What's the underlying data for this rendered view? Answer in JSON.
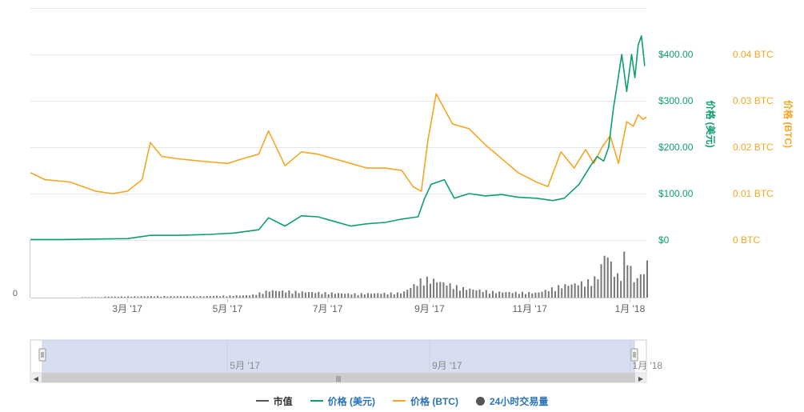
{
  "chart_data": {
    "type": "line",
    "x_axis": {
      "tick_labels": [
        "3月 '17",
        "5月 '17",
        "7月 '17",
        "9月 '17",
        "11月 '17",
        "1月 '18"
      ],
      "range": [
        "2017-01-01",
        "2018-01-11"
      ]
    },
    "y_axis_left": {
      "label": "价格 (美元)",
      "tick_labels": [
        "$0",
        "$100.00",
        "$200.00",
        "$300.00",
        "$400.00"
      ],
      "ylim": [
        0,
        500
      ],
      "color": "#0e9f6e"
    },
    "y_axis_right": {
      "label": "价格 (BTC)",
      "tick_labels": [
        "0 BTC",
        "0.01 BTC",
        "0.02 BTC",
        "0.03 BTC",
        "0.04 BTC"
      ],
      "ylim": [
        0,
        0.05
      ],
      "color": "#f5a623"
    },
    "volume_axis": {
      "tick_labels": [
        "0"
      ]
    },
    "series": [
      {
        "name": "价格 (美元)",
        "color": "#0e9f6e",
        "x": [
          "2017-01-01",
          "2017-01-20",
          "2017-02-10",
          "2017-03-01",
          "2017-03-15",
          "2017-04-01",
          "2017-04-20",
          "2017-05-05",
          "2017-05-20",
          "2017-05-26",
          "2017-06-05",
          "2017-06-15",
          "2017-06-25",
          "2017-07-05",
          "2017-07-15",
          "2017-07-25",
          "2017-08-05",
          "2017-08-15",
          "2017-08-25",
          "2017-08-29",
          "2017-09-02",
          "2017-09-10",
          "2017-09-16",
          "2017-09-25",
          "2017-10-05",
          "2017-10-15",
          "2017-10-25",
          "2017-11-05",
          "2017-11-15",
          "2017-11-22",
          "2017-12-01",
          "2017-12-08",
          "2017-12-12",
          "2017-12-16",
          "2017-12-19",
          "2017-12-22",
          "2017-12-24",
          "2017-12-27",
          "2017-12-30",
          "2018-01-02",
          "2018-01-04",
          "2018-01-06",
          "2018-01-08",
          "2018-01-10"
        ],
        "values": [
          1,
          1,
          2,
          3,
          10,
          10,
          12,
          15,
          22,
          48,
          30,
          52,
          50,
          40,
          30,
          35,
          38,
          45,
          50,
          90,
          120,
          130,
          90,
          100,
          95,
          98,
          92,
          90,
          85,
          90,
          120,
          160,
          180,
          170,
          200,
          285,
          330,
          400,
          320,
          400,
          350,
          420,
          440,
          375
        ]
      },
      {
        "name": "价格 (BTC)",
        "color": "#f5a623",
        "x": [
          "2017-01-01",
          "2017-01-10",
          "2017-01-25",
          "2017-02-10",
          "2017-02-20",
          "2017-03-01",
          "2017-03-10",
          "2017-03-15",
          "2017-03-22",
          "2017-04-01",
          "2017-04-15",
          "2017-05-01",
          "2017-05-10",
          "2017-05-20",
          "2017-05-26",
          "2017-06-05",
          "2017-06-15",
          "2017-06-25",
          "2017-07-05",
          "2017-07-15",
          "2017-07-25",
          "2017-08-05",
          "2017-08-15",
          "2017-08-22",
          "2017-08-27",
          "2017-08-31",
          "2017-09-05",
          "2017-09-15",
          "2017-09-25",
          "2017-10-05",
          "2017-10-15",
          "2017-10-25",
          "2017-11-05",
          "2017-11-12",
          "2017-11-20",
          "2017-11-28",
          "2017-12-05",
          "2017-12-10",
          "2017-12-15",
          "2017-12-20",
          "2017-12-25",
          "2017-12-30",
          "2018-01-03",
          "2018-01-06",
          "2018-01-09",
          "2018-01-11"
        ],
        "values": [
          0.0145,
          0.013,
          0.0125,
          0.0105,
          0.01,
          0.0105,
          0.013,
          0.021,
          0.018,
          0.0175,
          0.017,
          0.0165,
          0.0175,
          0.0185,
          0.0235,
          0.016,
          0.019,
          0.0185,
          0.0175,
          0.0165,
          0.0155,
          0.0155,
          0.015,
          0.0115,
          0.0105,
          0.0215,
          0.0315,
          0.025,
          0.024,
          0.0205,
          0.0175,
          0.0145,
          0.0125,
          0.0115,
          0.019,
          0.0155,
          0.0195,
          0.0165,
          0.02,
          0.0225,
          0.0165,
          0.0255,
          0.0245,
          0.027,
          0.026,
          0.0265
        ]
      },
      {
        "name": "24小时交易量",
        "color": "#777777",
        "type": "bar",
        "x": [
          "2017-02-15",
          "2017-03-15",
          "2017-04-15",
          "2017-05-15",
          "2017-05-26",
          "2017-06-15",
          "2017-07-15",
          "2017-08-15",
          "2017-08-28",
          "2017-09-05",
          "2017-09-20",
          "2017-10-10",
          "2017-11-05",
          "2017-11-20",
          "2017-12-01",
          "2017-12-08",
          "2017-12-12",
          "2017-12-17",
          "2017-12-21",
          "2017-12-25",
          "2017-12-29",
          "2018-01-03",
          "2018-01-08",
          "2018-01-11"
        ],
        "values": [
          0.02,
          0.03,
          0.03,
          0.05,
          0.15,
          0.12,
          0.08,
          0.1,
          0.4,
          0.35,
          0.2,
          0.12,
          0.1,
          0.25,
          0.3,
          0.35,
          0.45,
          1.0,
          0.6,
          0.4,
          1.0,
          0.35,
          0.5,
          0.7
        ]
      }
    ],
    "navigator": {
      "tick_labels": [
        "5月 '17",
        "9月 '17",
        "1月 '18"
      ]
    },
    "legend": {
      "position": "bottom",
      "items": [
        {
          "label": "市值",
          "color": "#555555",
          "marker": "line"
        },
        {
          "label": "价格 (美元)",
          "color": "#0e9f6e",
          "marker": "line"
        },
        {
          "label": "价格 (BTC)",
          "color": "#f5a623",
          "marker": "line"
        },
        {
          "label": "24小时交易量",
          "color": "#555555",
          "marker": "dot"
        }
      ]
    },
    "grid": true
  },
  "scrollbar": {
    "grip_glyph": "|||",
    "left_arrow": "◀",
    "right_arrow": "▶"
  }
}
